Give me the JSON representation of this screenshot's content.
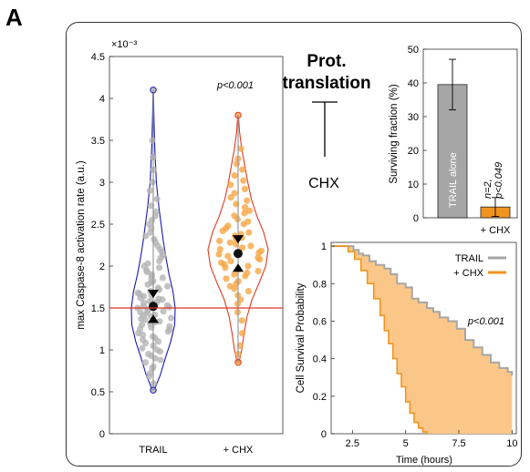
{
  "panel_letter": "A",
  "scheme": {
    "title_line1": "Prot.",
    "title_line2": "translation",
    "inhibitor": "CHX"
  },
  "colors": {
    "trail": "#1a1ab4",
    "chx": "#e03a1e",
    "trail_points": "#b4b4b4",
    "chx_points": "#f7a646",
    "hline": "#e0342a",
    "bar_trail": "#a6a6a6",
    "bar_chx": "#f0941f",
    "km_trail": "#a6a6a6",
    "km_chx": "#f0941f",
    "km_fill": "#fbc788"
  },
  "chart_data": [
    {
      "type": "scatter",
      "subtype": "violin",
      "ylabel": "max Caspase-8 activation rate (a.u.)",
      "yexponent": "×10⁻³",
      "ylim": [
        0,
        4.5
      ],
      "yticks": [
        "0",
        "0.5",
        "1",
        "1.5",
        "2",
        "2.5",
        "3",
        "3.5",
        "4",
        "4.5"
      ],
      "categories": [
        "TRAIL",
        "+ CHX"
      ],
      "annotation": "p<0.001",
      "reference_line": 1.5,
      "series": [
        {
          "name": "TRAIL",
          "min": 0.52,
          "max": 4.1,
          "median": 1.52,
          "ci": [
            1.42,
            1.62
          ],
          "violin": [
            [
              0.52,
              0.04
            ],
            [
              0.7,
              0.32
            ],
            [
              0.9,
              0.55
            ],
            [
              1.1,
              0.8
            ],
            [
              1.3,
              0.98
            ],
            [
              1.5,
              1.0
            ],
            [
              1.7,
              0.9
            ],
            [
              1.9,
              0.72
            ],
            [
              2.1,
              0.58
            ],
            [
              2.3,
              0.46
            ],
            [
              2.5,
              0.36
            ],
            [
              2.7,
              0.26
            ],
            [
              3.0,
              0.14
            ],
            [
              3.4,
              0.07
            ],
            [
              3.8,
              0.03
            ],
            [
              4.1,
              0.01
            ]
          ],
          "points": [
            0.52,
            0.6,
            0.68,
            0.72,
            0.78,
            0.8,
            0.85,
            0.88,
            0.9,
            0.93,
            0.95,
            0.98,
            1.0,
            1.02,
            1.05,
            1.08,
            1.1,
            1.12,
            1.14,
            1.16,
            1.18,
            1.2,
            1.22,
            1.24,
            1.25,
            1.27,
            1.28,
            1.3,
            1.31,
            1.33,
            1.34,
            1.36,
            1.37,
            1.38,
            1.4,
            1.41,
            1.42,
            1.44,
            1.45,
            1.46,
            1.47,
            1.48,
            1.5,
            1.51,
            1.52,
            1.53,
            1.55,
            1.56,
            1.57,
            1.58,
            1.6,
            1.61,
            1.62,
            1.64,
            1.65,
            1.67,
            1.68,
            1.7,
            1.72,
            1.74,
            1.76,
            1.78,
            1.8,
            1.82,
            1.84,
            1.86,
            1.88,
            1.9,
            1.93,
            1.95,
            1.98,
            2.0,
            2.03,
            2.06,
            2.1,
            2.13,
            2.17,
            2.2,
            2.24,
            2.28,
            2.32,
            2.36,
            2.4,
            2.45,
            2.5,
            2.55,
            2.6,
            2.65,
            2.72,
            2.8,
            2.9,
            3.0,
            3.15,
            3.3,
            3.5,
            4.1
          ]
        },
        {
          "name": "+ CHX",
          "min": 0.85,
          "max": 3.8,
          "median": 2.15,
          "ci": [
            2.03,
            2.27
          ],
          "violin": [
            [
              0.85,
              0.03
            ],
            [
              1.0,
              0.12
            ],
            [
              1.2,
              0.2
            ],
            [
              1.4,
              0.3
            ],
            [
              1.6,
              0.46
            ],
            [
              1.8,
              0.7
            ],
            [
              2.0,
              0.92
            ],
            [
              2.2,
              1.0
            ],
            [
              2.4,
              0.85
            ],
            [
              2.6,
              0.62
            ],
            [
              2.8,
              0.44
            ],
            [
              3.0,
              0.32
            ],
            [
              3.2,
              0.22
            ],
            [
              3.4,
              0.12
            ],
            [
              3.6,
              0.05
            ],
            [
              3.8,
              0.01
            ]
          ],
          "points": [
            0.85,
            0.95,
            1.05,
            1.2,
            1.35,
            1.45,
            1.55,
            1.6,
            1.65,
            1.7,
            1.73,
            1.76,
            1.79,
            1.82,
            1.85,
            1.88,
            1.9,
            1.92,
            1.94,
            1.96,
            1.98,
            2.0,
            2.02,
            2.04,
            2.06,
            2.08,
            2.1,
            2.12,
            2.14,
            2.16,
            2.18,
            2.2,
            2.22,
            2.24,
            2.26,
            2.28,
            2.3,
            2.32,
            2.34,
            2.36,
            2.38,
            2.4,
            2.42,
            2.45,
            2.48,
            2.5,
            2.53,
            2.56,
            2.6,
            2.63,
            2.66,
            2.7,
            2.74,
            2.78,
            2.82,
            2.87,
            2.92,
            2.97,
            3.02,
            3.08,
            3.15,
            3.22,
            3.28,
            3.4,
            3.8
          ]
        }
      ]
    },
    {
      "type": "bar",
      "ylabel": "Surviving fraction (%)",
      "ylim": [
        0,
        50
      ],
      "yticks": [
        "0",
        "10",
        "20",
        "30",
        "40",
        "50"
      ],
      "categories": [
        "",
        "+ CHX"
      ],
      "bar_inner_label": "TRAIL alone",
      "annotation_lines": [
        "n=2,",
        "p<0.049"
      ],
      "values": [
        39.5,
        3.2
      ],
      "errors": [
        7.5,
        2.8
      ]
    },
    {
      "type": "line",
      "subtype": "kaplan-meier",
      "ylabel": "Cell Survival Probability",
      "xlabel": "Time (hours)",
      "xlim": [
        1.5,
        10.2
      ],
      "ylim": [
        0,
        1.02
      ],
      "xticks": [
        2.5,
        5,
        7.5,
        10
      ],
      "xtick_labels": [
        "2.5",
        "5",
        "7.5",
        "10"
      ],
      "yticks": [
        0,
        0.2,
        0.4,
        0.6,
        0.8,
        1
      ],
      "ytick_labels": [
        "0",
        "0.2",
        "0.4",
        "0.6",
        "0.8",
        "1"
      ],
      "annotation": "p<0.001",
      "series": [
        {
          "name": "TRAIL",
          "x": [
            1.5,
            2.3,
            2.55,
            2.8,
            3.0,
            3.3,
            3.6,
            4.0,
            4.3,
            4.6,
            5.0,
            5.3,
            5.6,
            6.0,
            6.3,
            6.6,
            7.0,
            7.4,
            7.8,
            8.2,
            8.6,
            9.0,
            9.4,
            9.8,
            10.0
          ],
          "y": [
            1.0,
            1.0,
            0.98,
            0.96,
            0.95,
            0.92,
            0.9,
            0.88,
            0.85,
            0.8,
            0.78,
            0.72,
            0.7,
            0.67,
            0.65,
            0.62,
            0.6,
            0.56,
            0.5,
            0.46,
            0.42,
            0.38,
            0.35,
            0.33,
            0.31
          ]
        },
        {
          "name": "+ CHX",
          "x": [
            1.5,
            2.0,
            2.3,
            2.6,
            2.9,
            3.2,
            3.5,
            3.8,
            4.0,
            4.2,
            4.4,
            4.6,
            4.8,
            5.0,
            5.2,
            5.4,
            5.6,
            5.8,
            6.0
          ],
          "y": [
            1.0,
            1.0,
            0.97,
            0.93,
            0.87,
            0.8,
            0.72,
            0.63,
            0.55,
            0.48,
            0.4,
            0.32,
            0.25,
            0.17,
            0.11,
            0.06,
            0.03,
            0.01,
            0.0
          ]
        }
      ]
    }
  ]
}
